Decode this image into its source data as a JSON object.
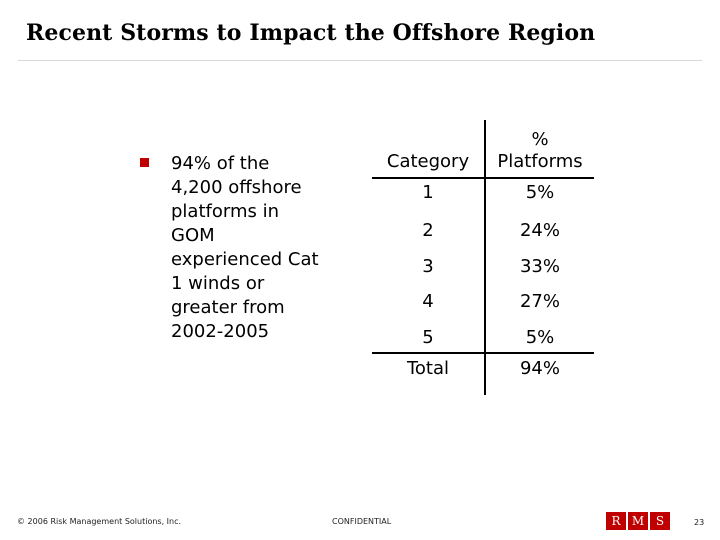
{
  "slide": {
    "title": "Recent Storms to Impact the Offshore Region",
    "bullet": "94% of the 4,200 offshore platforms in GOM experienced Cat 1 winds or greater from 2002-2005"
  },
  "table": {
    "header_category": "Category",
    "header_pct_line1": "%",
    "header_pct_line2": "Platforms",
    "rows": [
      {
        "category": "1",
        "pct": "5%"
      },
      {
        "category": "2",
        "pct": "24%"
      },
      {
        "category": "3",
        "pct": "33%"
      },
      {
        "category": "4",
        "pct": "27%"
      },
      {
        "category": "5",
        "pct": "5%"
      },
      {
        "category": "Total",
        "pct": "94%"
      }
    ]
  },
  "footer": {
    "copyright": "© 2006 Risk Management Solutions, Inc.",
    "confidential": "CONFIDENTIAL",
    "page_number": "23",
    "logo_letters": [
      "R",
      "M",
      "S"
    ]
  },
  "colors": {
    "accent": "#c00000"
  }
}
